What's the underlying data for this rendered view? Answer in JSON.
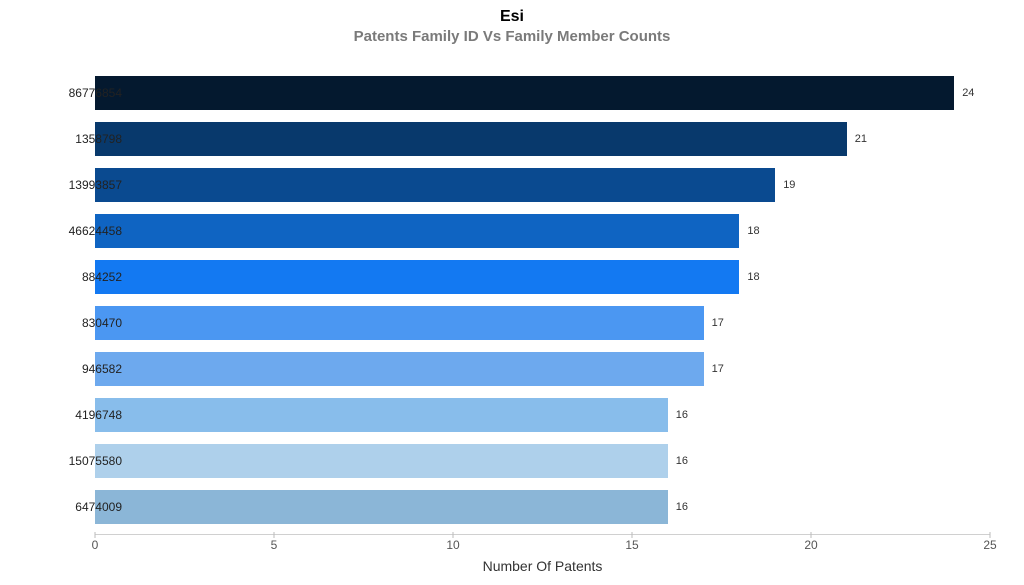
{
  "chart": {
    "type": "bar-horizontal",
    "title": "Esi",
    "subtitle": "Patents Family ID Vs Family Member Counts",
    "title_fontsize": 16,
    "title_color": "#000000",
    "subtitle_fontsize": 15,
    "subtitle_color": "#7a7a7a",
    "background_color": "#ffffff",
    "x_title": "Number Of Patents",
    "x_title_fontsize": 14,
    "x_title_color": "#333333",
    "xlim": [
      0,
      25
    ],
    "xticks": [
      0,
      5,
      10,
      15,
      20,
      25
    ],
    "ytick_fontsize": 12,
    "xtick_fontsize": 12,
    "value_label_fontsize": 11,
    "axis_line_color": "#d0d0d0",
    "tick_mark_color": "#bbbbbb",
    "bar_gap_ratio": 0.28,
    "bars": [
      {
        "label": "86776854",
        "value": 24,
        "color": "#04192f"
      },
      {
        "label": "1358798",
        "value": 21,
        "color": "#08396c"
      },
      {
        "label": "13993857",
        "value": 19,
        "color": "#0a4a90"
      },
      {
        "label": "46624458",
        "value": 18,
        "color": "#0f64c2"
      },
      {
        "label": "884252",
        "value": 18,
        "color": "#1379f2"
      },
      {
        "label": "830470",
        "value": 17,
        "color": "#4b97f2"
      },
      {
        "label": "946582",
        "value": 17,
        "color": "#6da9ee"
      },
      {
        "label": "4196748",
        "value": 16,
        "color": "#88bdeb"
      },
      {
        "label": "15075580",
        "value": 16,
        "color": "#aed0eb"
      },
      {
        "label": "6474009",
        "value": 16,
        "color": "#8bb6d7"
      }
    ]
  }
}
